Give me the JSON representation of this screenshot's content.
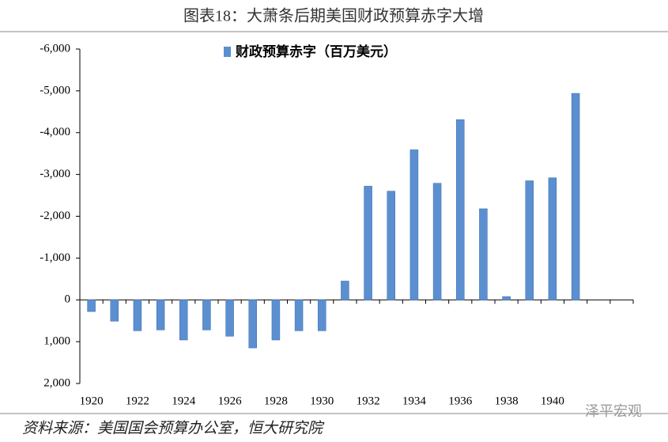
{
  "chart_data": {
    "type": "bar",
    "title": "图表18：大萧条后期美国财政预算赤字大增",
    "source": "资料来源：美国国会预算办公室，恒大研究院",
    "watermark": "泽平宏观",
    "categories": [
      "1920",
      null,
      "1922",
      null,
      "1924",
      null,
      "1926",
      null,
      "1928",
      null,
      "1930",
      null,
      "1932",
      null,
      "1934",
      null,
      "1936",
      null,
      "1938",
      null,
      "1940",
      null,
      null,
      null
    ],
    "series": [
      {
        "name": "财政预算赤字（百万美元）",
        "color": "#5b8fd0",
        "values": [
          280,
          510,
          740,
          720,
          960,
          720,
          870,
          1150,
          960,
          740,
          740,
          -450,
          -2720,
          -2600,
          -3590,
          -2790,
          -4310,
          -2180,
          -80,
          -2850,
          -2920,
          -4940,
          null,
          null
        ]
      }
    ],
    "ylim": [
      -6000,
      2000
    ],
    "y_inverted": true,
    "yticks": [
      {
        "value": -6000,
        "label": "-6,000"
      },
      {
        "value": -5000,
        "label": "-5,000"
      },
      {
        "value": -4000,
        "label": "-4,000"
      },
      {
        "value": -3000,
        "label": "-3,000"
      },
      {
        "value": -2000,
        "label": "-2,000"
      },
      {
        "value": -1000,
        "label": "-1,000"
      },
      0,
      {
        "value": 1000,
        "label": "1,000"
      },
      {
        "value": 2000,
        "label": "2,000"
      }
    ],
    "legend": "top"
  }
}
